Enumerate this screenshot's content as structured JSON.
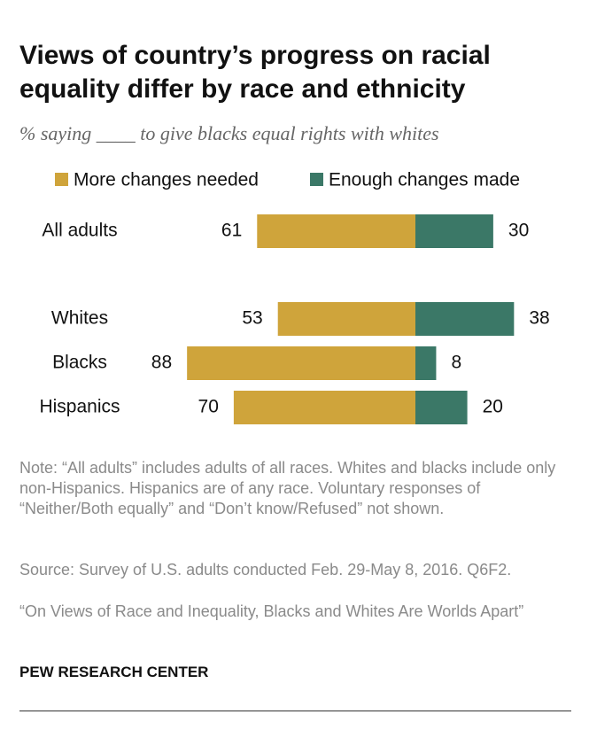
{
  "chart_data": {
    "type": "diverging-bar",
    "title": "Views of country’s progress on racial equality differ by race and ethnicity",
    "subtitle": "% saying ____ to give blacks equal rights with whites",
    "categories": [
      "All adults",
      "Whites",
      "Blacks",
      "Hispanics"
    ],
    "series": [
      {
        "name": "More changes needed",
        "color": "#cfa43b",
        "values": [
          61,
          53,
          88,
          70
        ]
      },
      {
        "name": "Enough changes made",
        "color": "#3b7867",
        "values": [
          30,
          38,
          8,
          20
        ]
      }
    ],
    "note": "Note: “All adults” includes adults of all races. Whites and blacks include only non-Hispanics. Hispanics are of any race. Voluntary responses of “Neither/Both equally” and “Don’t know/Refused” not shown.",
    "source": "Source: Survey of U.S. adults conducted Feb. 29-May 8, 2016. Q6F2.",
    "report": "“On Views of Race and Inequality, Blacks and Whites Are Worlds Apart”",
    "organization": "PEW RESEARCH CENTER"
  }
}
